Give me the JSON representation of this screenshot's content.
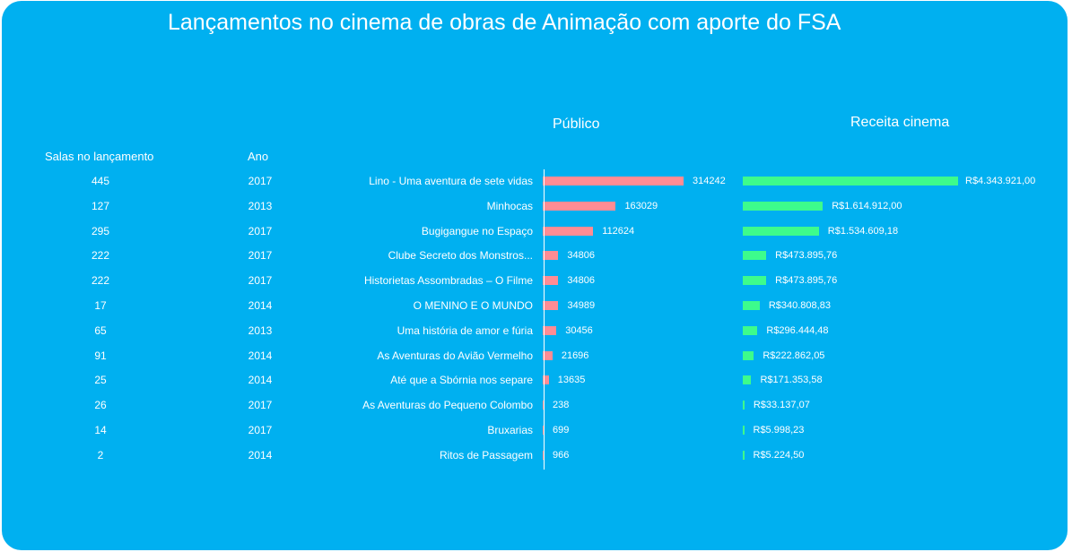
{
  "title": "Lançamentos no cinema de obras de Animação  com aporte do FSA",
  "columns": {
    "salas": "Salas no lançamento",
    "ano": "Ano",
    "publico": "Público",
    "receita": "Receita cinema"
  },
  "colors": {
    "background": "#00b0f0",
    "publico_bar": "#ff8c94",
    "receita_bar": "#3dfc8c"
  },
  "chart_data": {
    "type": "bar",
    "orientation": "horizontal",
    "categories": [
      "Lino - Uma aventura de sete vidas",
      "Minhocas",
      "Bugigangue no Espaço",
      "Clube Secreto dos Monstros...",
      "Historietas Assombradas – O Filme",
      "O MENINO E O MUNDO",
      "Uma história de amor e fúria",
      "As Aventuras do Avião Vermelho",
      "Até que a Sbórnia nos separe",
      "As Aventuras do Pequeno Colombo",
      "Bruxarias",
      "Ritos de Passagem"
    ],
    "salas": [
      "445",
      "127",
      "295",
      "222",
      "222",
      "17",
      "65",
      "91",
      "25",
      "26",
      "14",
      "2"
    ],
    "ano": [
      "2017",
      "2013",
      "2017",
      "2017",
      "2017",
      "2014",
      "2013",
      "2014",
      "2014",
      "2017",
      "2017",
      "2014"
    ],
    "series": [
      {
        "name": "Público",
        "values": [
          314242,
          163029,
          112624,
          34806,
          34806,
          34989,
          30456,
          21696,
          13635,
          238,
          699,
          966
        ],
        "labels": [
          "314242",
          "163029",
          "112624",
          "34806",
          "34806",
          "34989",
          "30456",
          "21696",
          "13635",
          "238",
          "699",
          "966"
        ]
      },
      {
        "name": "Receita cinema",
        "values": [
          4343921.0,
          1614912.0,
          1534609.18,
          473895.76,
          473895.76,
          340808.83,
          296444.48,
          222862.05,
          171353.58,
          33137.07,
          5998.23,
          5224.5
        ],
        "labels": [
          "R$4.343.921,00",
          "R$1.614.912,00",
          "R$1.534.609,18",
          "R$473.895,76",
          "R$473.895,76",
          "R$340.808,83",
          "R$296.444,48",
          "R$222.862,05",
          "R$171.353,58",
          "R$33.137,07",
          "R$5.998,23",
          "R$5.224,50"
        ]
      }
    ],
    "grid": false,
    "legend": "none"
  }
}
